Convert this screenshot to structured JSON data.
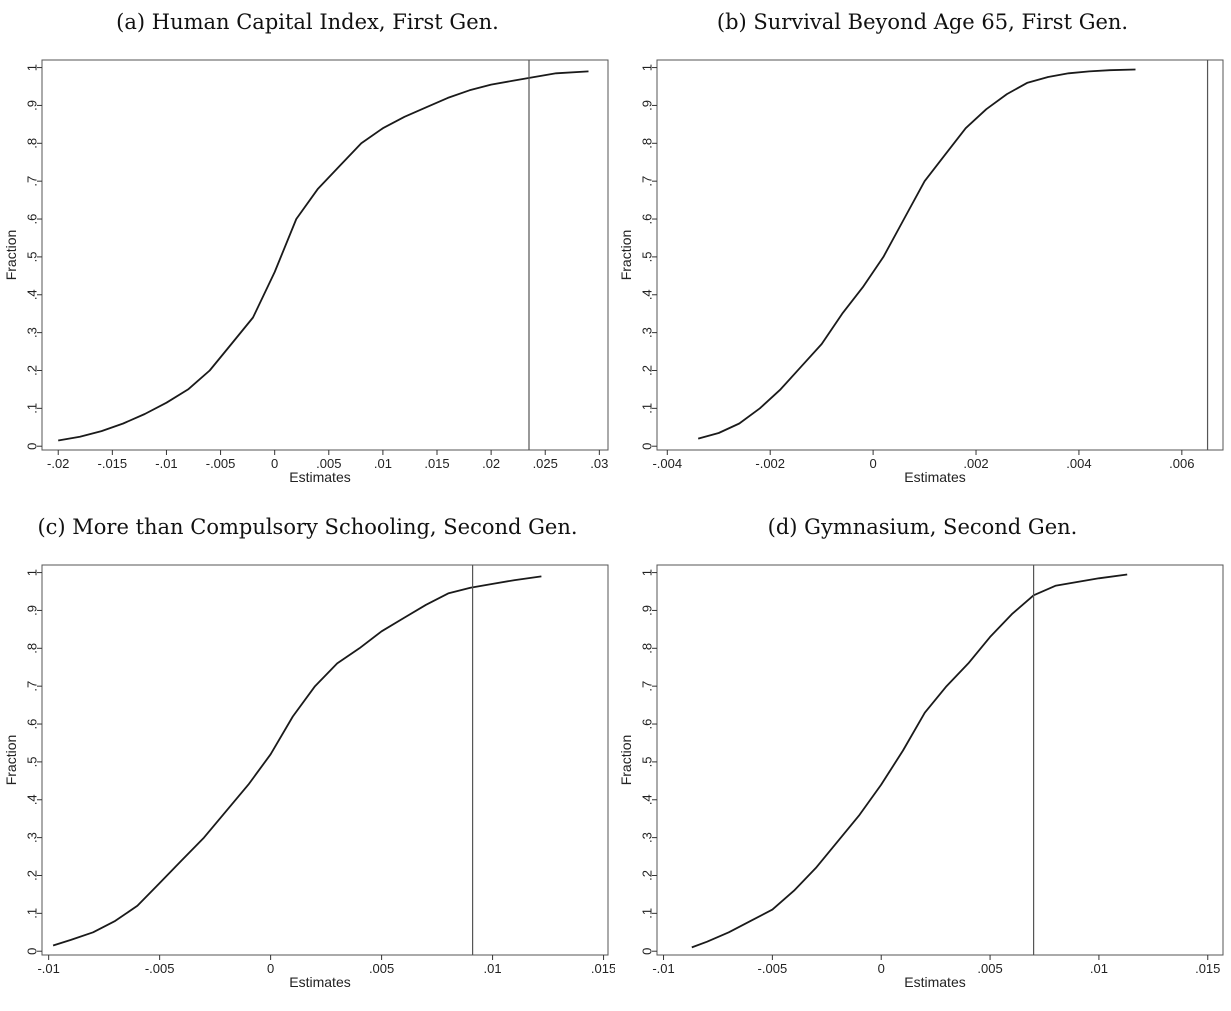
{
  "chart_data": [
    {
      "type": "line",
      "title": "(a) Human Capital Index, First Gen.",
      "xlabel": "Estimates",
      "ylabel": "Fraction",
      "xlim": [
        -0.0215,
        0.0308
      ],
      "ylim": [
        -0.01,
        1.02
      ],
      "xticks": [
        -0.02,
        -0.015,
        -0.01,
        -0.005,
        0,
        0.005,
        0.01,
        0.015,
        0.02,
        0.025,
        0.03
      ],
      "xtick_labels": [
        "-.02",
        "-.015",
        "-.01",
        "-.005",
        "0",
        ".005",
        ".01",
        ".015",
        ".02",
        ".025",
        ".03"
      ],
      "yticks": [
        0,
        0.1,
        0.2,
        0.3,
        0.4,
        0.5,
        0.6,
        0.7,
        0.8,
        0.9,
        1
      ],
      "ytick_labels": [
        "0",
        ".1",
        ".2",
        ".3",
        ".4",
        ".5",
        ".6",
        ".7",
        ".8",
        ".9",
        "1"
      ],
      "vline": 0.0235,
      "x": [
        -0.02,
        -0.018,
        -0.016,
        -0.014,
        -0.012,
        -0.01,
        -0.008,
        -0.006,
        -0.004,
        -0.002,
        0,
        0.002,
        0.004,
        0.006,
        0.008,
        0.01,
        0.012,
        0.014,
        0.016,
        0.018,
        0.02,
        0.022,
        0.024,
        0.026,
        0.029
      ],
      "y": [
        0.015,
        0.025,
        0.04,
        0.06,
        0.085,
        0.115,
        0.15,
        0.2,
        0.27,
        0.34,
        0.46,
        0.6,
        0.68,
        0.74,
        0.8,
        0.84,
        0.87,
        0.895,
        0.92,
        0.94,
        0.955,
        0.965,
        0.975,
        0.985,
        0.99
      ]
    },
    {
      "type": "line",
      "title": "(b) Survival Beyond Age 65, First Gen.",
      "xlabel": "Estimates",
      "ylabel": "Fraction",
      "xlim": [
        -0.0042,
        0.0068
      ],
      "ylim": [
        -0.01,
        1.02
      ],
      "xticks": [
        -0.004,
        -0.002,
        0,
        0.002,
        0.004,
        0.006
      ],
      "xtick_labels": [
        "-.004",
        "-.002",
        "0",
        ".002",
        ".004",
        ".006"
      ],
      "yticks": [
        0,
        0.1,
        0.2,
        0.3,
        0.4,
        0.5,
        0.6,
        0.7,
        0.8,
        0.9,
        1
      ],
      "ytick_labels": [
        "0",
        ".1",
        ".2",
        ".3",
        ".4",
        ".5",
        ".6",
        ".7",
        ".8",
        ".9",
        "1"
      ],
      "vline": 0.0065,
      "x": [
        -0.0034,
        -0.003,
        -0.0026,
        -0.0022,
        -0.0018,
        -0.0014,
        -0.001,
        -0.0006,
        -0.0002,
        0.0002,
        0.0006,
        0.001,
        0.0014,
        0.0018,
        0.0022,
        0.0026,
        0.003,
        0.0034,
        0.0038,
        0.0042,
        0.0046,
        0.0051
      ],
      "y": [
        0.02,
        0.035,
        0.06,
        0.1,
        0.15,
        0.21,
        0.27,
        0.35,
        0.42,
        0.5,
        0.6,
        0.7,
        0.77,
        0.84,
        0.89,
        0.93,
        0.96,
        0.975,
        0.985,
        0.99,
        0.993,
        0.995
      ]
    },
    {
      "type": "line",
      "title": "(c) More than Compulsory Schooling, Second Gen.",
      "xlabel": "Estimates",
      "ylabel": "Fraction",
      "xlim": [
        -0.0103,
        0.0152
      ],
      "ylim": [
        -0.01,
        1.02
      ],
      "xticks": [
        -0.01,
        -0.005,
        0,
        0.005,
        0.01,
        0.015
      ],
      "xtick_labels": [
        "-.01",
        "-.005",
        "0",
        ".005",
        ".01",
        ".015"
      ],
      "yticks": [
        0,
        0.1,
        0.2,
        0.3,
        0.4,
        0.5,
        0.6,
        0.7,
        0.8,
        0.9,
        1
      ],
      "ytick_labels": [
        "0",
        ".1",
        ".2",
        ".3",
        ".4",
        ".5",
        ".6",
        ".7",
        ".8",
        ".9",
        "1"
      ],
      "vline": 0.0091,
      "x": [
        -0.0098,
        -0.009,
        -0.008,
        -0.007,
        -0.006,
        -0.005,
        -0.004,
        -0.003,
        -0.002,
        -0.001,
        0,
        0.001,
        0.002,
        0.003,
        0.004,
        0.005,
        0.006,
        0.007,
        0.008,
        0.009,
        0.01,
        0.011,
        0.0122
      ],
      "y": [
        0.015,
        0.03,
        0.05,
        0.08,
        0.12,
        0.18,
        0.24,
        0.3,
        0.37,
        0.44,
        0.52,
        0.62,
        0.7,
        0.76,
        0.8,
        0.845,
        0.88,
        0.915,
        0.945,
        0.96,
        0.97,
        0.98,
        0.99
      ]
    },
    {
      "type": "line",
      "title": "(d) Gymnasium, Second Gen.",
      "xlabel": "Estimates",
      "ylabel": "Fraction",
      "xlim": [
        -0.0103,
        0.0157
      ],
      "ylim": [
        -0.01,
        1.02
      ],
      "xticks": [
        -0.01,
        -0.005,
        0,
        0.005,
        0.01,
        0.015
      ],
      "xtick_labels": [
        "-.01",
        "-.005",
        "0",
        ".005",
        ".01",
        ".015"
      ],
      "yticks": [
        0,
        0.1,
        0.2,
        0.3,
        0.4,
        0.5,
        0.6,
        0.7,
        0.8,
        0.9,
        1
      ],
      "ytick_labels": [
        "0",
        ".1",
        ".2",
        ".3",
        ".4",
        ".5",
        ".6",
        ".7",
        ".8",
        ".9",
        "1"
      ],
      "vline": 0.007,
      "x": [
        -0.0087,
        -0.008,
        -0.007,
        -0.006,
        -0.005,
        -0.004,
        -0.003,
        -0.002,
        -0.001,
        0,
        0.001,
        0.002,
        0.003,
        0.004,
        0.005,
        0.006,
        0.007,
        0.008,
        0.009,
        0.01,
        0.0113
      ],
      "y": [
        0.01,
        0.025,
        0.05,
        0.08,
        0.11,
        0.16,
        0.22,
        0.29,
        0.36,
        0.44,
        0.53,
        0.63,
        0.7,
        0.76,
        0.83,
        0.89,
        0.94,
        0.965,
        0.975,
        0.985,
        0.995
      ]
    }
  ]
}
